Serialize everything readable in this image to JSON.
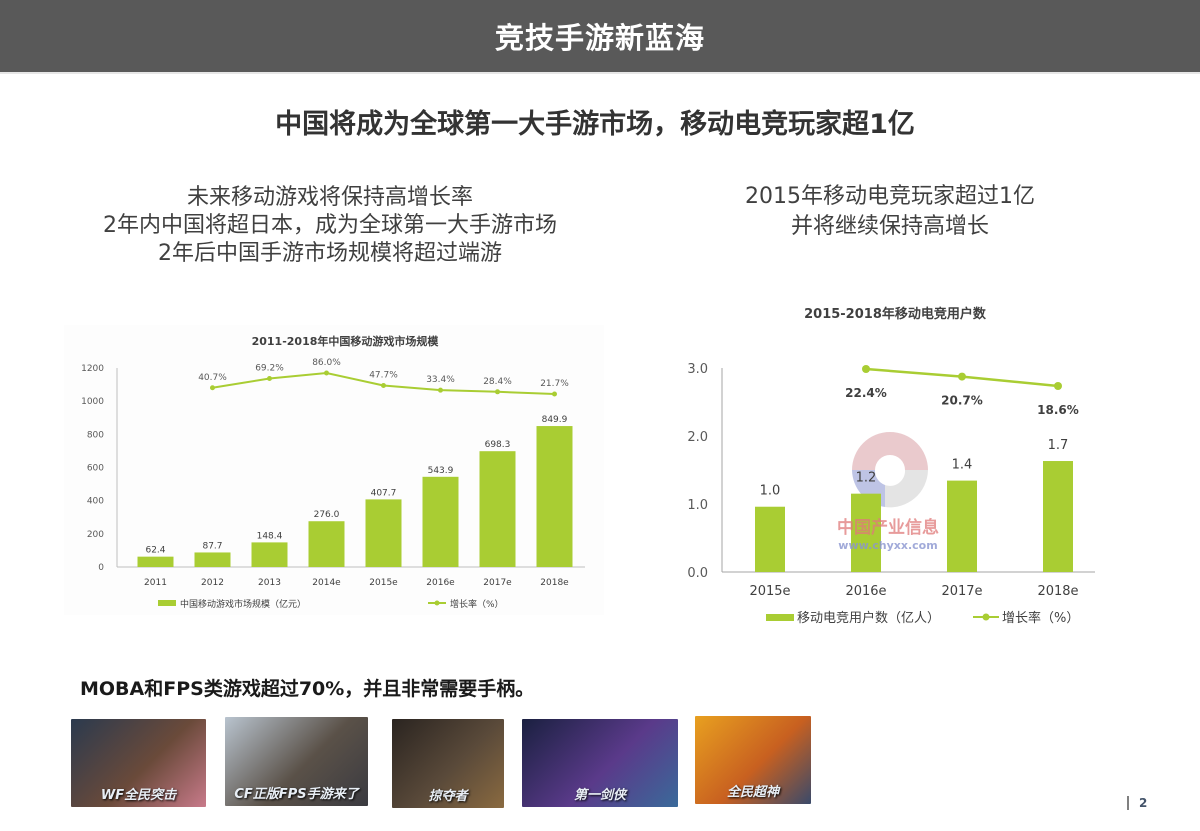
{
  "header": {
    "title": "竞技手游新蓝海"
  },
  "subtitle": "中国将成为全球第一大手游市场，移动电竞玩家超1亿",
  "left_text": {
    "lines": [
      "未来移动游戏将保持高增长率",
      "2年内中国将超日本，成为全球第一大手游市场",
      "2年后中国手游市场规模将超过端游"
    ]
  },
  "right_text": {
    "lines": [
      "2015年移动电竞玩家超过1亿",
      "并将继续保持高增长"
    ]
  },
  "colors": {
    "bar": "#a9cd33",
    "line": "#a9cd33",
    "header_bg": "#595959"
  },
  "watermark": {
    "cn": "中国产业信息",
    "url": "www.chyxx.com"
  },
  "bottom_caption": "MOBA和FPS类游戏超过70%，并且非常需要手柄。",
  "thumbnails": [
    {
      "label": "WF全民突击",
      "colors": [
        "#2b3a4e",
        "#6a4a3a",
        "#c87a8a"
      ]
    },
    {
      "label": "CF正版FPS手游来了",
      "colors": [
        "#b9c4cf",
        "#5a5148",
        "#3a3a40"
      ]
    },
    {
      "label": "掠夺者",
      "colors": [
        "#2a2420",
        "#5a4a3a",
        "#8a6a40"
      ]
    },
    {
      "label": "第一剑侠",
      "colors": [
        "#1a2040",
        "#5a3a8a",
        "#3a6a9a"
      ]
    },
    {
      "label": "全民超神",
      "colors": [
        "#e8a020",
        "#c86020",
        "#3a4a6a"
      ]
    }
  ],
  "page_number": "2",
  "chart_data": [
    {
      "type": "bar",
      "title": "2011-2018年中国移动游戏市场规模",
      "categories": [
        "2011",
        "2012",
        "2013",
        "2014e",
        "2015e",
        "2016e",
        "2017e",
        "2018e"
      ],
      "series": [
        {
          "name": "中国移动游戏市场规模（亿元）",
          "type": "bar",
          "values": [
            62.4,
            87.7,
            148.4,
            276.0,
            407.7,
            543.9,
            698.3,
            849.9
          ],
          "labels": [
            "62.4",
            "87.7",
            "148.4",
            "276.0",
            "407.7",
            "543.9",
            "698.3",
            "849.9"
          ]
        },
        {
          "name": "增长率（%）",
          "type": "line",
          "values": [
            null,
            40.7,
            69.2,
            86.0,
            47.7,
            33.4,
            28.4,
            21.7
          ],
          "labels": [
            "",
            "40.7%",
            "69.2%",
            "86.0%",
            "47.7%",
            "33.4%",
            "28.4%",
            "21.7%"
          ]
        }
      ],
      "yticks": [
        "0",
        "200",
        "400",
        "600",
        "800",
        "1000",
        "1200"
      ],
      "ylim": [
        0,
        1200
      ],
      "xlabel": "",
      "ylabel": "",
      "legend_position": "bottom",
      "grid": false
    },
    {
      "type": "bar",
      "title": "2015-2018年移动电竞用户数",
      "categories": [
        "2015e",
        "2016e",
        "2017e",
        "2018e"
      ],
      "series": [
        {
          "name": "移动电竞用户数（亿人）",
          "type": "bar",
          "values": [
            1.0,
            1.2,
            1.4,
            1.7
          ],
          "labels": [
            "1.0",
            "1.2",
            "1.4",
            "1.7"
          ]
        },
        {
          "name": "增长率（%）",
          "type": "line",
          "values": [
            null,
            22.4,
            20.7,
            18.6
          ],
          "labels": [
            "",
            "22.4%",
            "20.7%",
            "18.6%"
          ]
        }
      ],
      "yticks": [
        "0.0",
        "1.0",
        "2.0",
        "3.0"
      ],
      "ylim": [
        0,
        3.0
      ],
      "xlabel": "",
      "ylabel": "",
      "legend_position": "bottom",
      "grid": false
    }
  ]
}
